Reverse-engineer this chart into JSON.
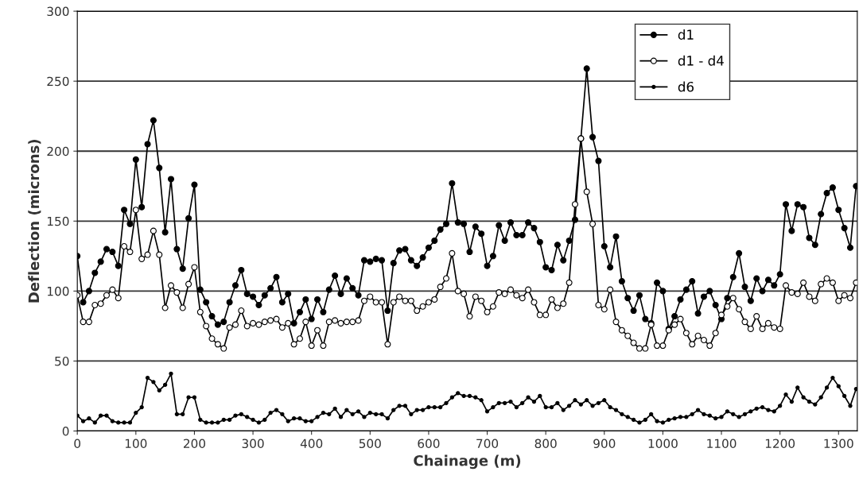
{
  "chart_data": {
    "type": "line",
    "xlabel": "Chainage (m)",
    "ylabel": "Deflection (microns)",
    "x": [
      0,
      10,
      20,
      30,
      40,
      50,
      60,
      70,
      80,
      90,
      100,
      110,
      120,
      130,
      140,
      150,
      160,
      170,
      180,
      190,
      200,
      210,
      220,
      230,
      240,
      250,
      260,
      270,
      280,
      290,
      300,
      310,
      320,
      330,
      340,
      350,
      360,
      370,
      380,
      390,
      400,
      410,
      420,
      430,
      440,
      450,
      460,
      470,
      480,
      490,
      500,
      510,
      520,
      530,
      540,
      550,
      560,
      570,
      580,
      590,
      600,
      610,
      620,
      630,
      640,
      650,
      660,
      670,
      680,
      690,
      700,
      710,
      720,
      730,
      740,
      750,
      760,
      770,
      780,
      790,
      800,
      810,
      820,
      830,
      840,
      850,
      860,
      870,
      880,
      890,
      900,
      910,
      920,
      930,
      940,
      950,
      960,
      970,
      980,
      990,
      1000,
      1010,
      1020,
      1030,
      1040,
      1050,
      1060,
      1070,
      1080,
      1090,
      1100,
      1110,
      1120,
      1130,
      1140,
      1150,
      1160,
      1170,
      1180,
      1190,
      1200,
      1210,
      1220,
      1230,
      1240,
      1250,
      1260,
      1270,
      1280,
      1290,
      1300,
      1310,
      1320,
      1330
    ],
    "series": [
      {
        "name": "d1",
        "color": "#000000",
        "marker": "circle",
        "values": [
          125,
          92,
          100,
          113,
          121,
          130,
          128,
          118,
          158,
          148,
          194,
          160,
          205,
          222,
          188,
          142,
          180,
          130,
          116,
          152,
          176,
          101,
          92,
          82,
          76,
          78,
          92,
          104,
          115,
          98,
          96,
          90,
          97,
          102,
          110,
          92,
          98,
          77,
          85,
          94,
          80,
          94,
          85,
          101,
          111,
          98,
          109,
          102,
          97,
          122,
          121,
          123,
          122,
          86,
          120,
          129,
          130,
          122,
          118,
          124,
          131,
          136,
          144,
          148,
          177,
          149,
          148,
          128,
          146,
          141,
          118,
          125,
          147,
          136,
          149,
          140,
          140,
          149,
          145,
          135,
          117,
          115,
          133,
          122,
          136,
          151,
          209,
          259,
          210,
          193,
          132,
          117,
          139,
          107,
          95,
          86,
          97,
          80,
          77,
          106,
          100,
          73,
          82,
          94,
          101,
          107,
          84,
          96,
          100,
          90,
          80,
          95,
          110,
          127,
          103,
          93,
          109,
          100,
          108,
          104,
          112,
          162,
          143,
          162,
          160,
          138,
          133,
          155,
          170,
          174,
          158,
          145,
          131,
          175
        ]
      },
      {
        "name": "d1 - d4",
        "color": "#000000",
        "marker": "circle",
        "values": [
          97,
          78,
          78,
          90,
          91,
          97,
          101,
          95,
          132,
          128,
          158,
          123,
          126,
          143,
          126,
          88,
          104,
          99,
          88,
          105,
          117,
          85,
          75,
          66,
          62,
          59,
          74,
          76,
          86,
          75,
          77,
          76,
          78,
          79,
          80,
          74,
          77,
          62,
          66,
          78,
          61,
          72,
          61,
          78,
          79,
          77,
          78,
          78,
          79,
          93,
          96,
          92,
          92,
          62,
          92,
          96,
          93,
          93,
          86,
          89,
          92,
          94,
          103,
          109,
          127,
          100,
          98,
          82,
          96,
          93,
          85,
          89,
          99,
          98,
          101,
          97,
          95,
          101,
          92,
          83,
          83,
          94,
          88,
          91,
          106,
          162,
          209,
          171,
          148,
          90,
          87,
          101,
          78,
          72,
          68,
          63,
          59,
          59,
          76,
          61,
          61,
          72,
          76,
          80,
          70,
          62,
          68,
          65,
          61,
          70,
          83,
          89,
          95,
          87,
          78,
          73,
          82,
          73,
          77,
          74,
          73,
          104,
          99,
          98,
          106,
          96,
          93,
          105,
          109,
          106,
          93,
          97,
          95,
          106
        ]
      },
      {
        "name": "d6",
        "color": "#000000",
        "marker": "circle",
        "values": [
          11,
          7,
          9,
          6,
          11,
          11,
          7,
          6,
          6,
          6,
          13,
          17,
          38,
          35,
          29,
          33,
          41,
          12,
          12,
          24,
          24,
          8,
          6,
          6,
          6,
          8,
          8,
          11,
          12,
          10,
          8,
          6,
          8,
          13,
          15,
          12,
          7,
          9,
          9,
          7,
          7,
          10,
          13,
          12,
          16,
          10,
          15,
          12,
          14,
          10,
          13,
          12,
          12,
          9,
          15,
          18,
          18,
          12,
          15,
          15,
          17,
          17,
          17,
          20,
          24,
          27,
          25,
          25,
          24,
          22,
          14,
          17,
          20,
          20,
          21,
          17,
          20,
          24,
          21,
          25,
          17,
          17,
          20,
          15,
          18,
          22,
          19,
          22,
          18,
          20,
          22,
          17,
          15,
          12,
          10,
          8,
          6,
          8,
          12,
          7,
          6,
          8,
          9,
          10,
          10,
          12,
          15,
          12,
          11,
          9,
          10,
          14,
          12,
          10,
          12,
          14,
          16,
          17,
          15,
          14,
          18,
          26,
          21,
          31,
          24,
          21,
          19,
          24,
          31,
          38,
          32,
          25,
          18,
          30
        ]
      }
    ],
    "xlim": [
      0,
      1332
    ],
    "xticks": [
      0,
      100,
      200,
      300,
      400,
      500,
      600,
      700,
      800,
      900,
      1000,
      1100,
      1200,
      1300
    ],
    "ylim": [
      0,
      300
    ],
    "yticks": [
      0,
      50,
      100,
      150,
      200,
      250,
      300
    ],
    "grid": "y",
    "legend": "top right",
    "line_style": "solid"
  }
}
